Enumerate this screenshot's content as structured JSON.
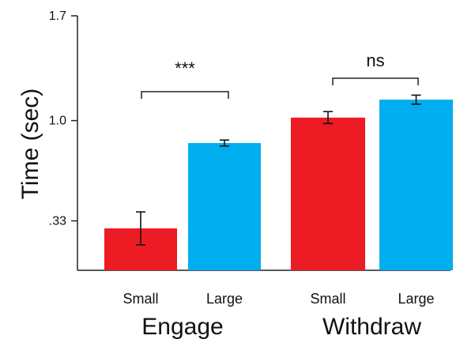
{
  "chart_data": {
    "type": "bar",
    "categories": [
      "Small",
      "Large",
      "Small",
      "Large"
    ],
    "groups": [
      {
        "label": "Engage",
        "category_indices": [
          0,
          1
        ]
      },
      {
        "label": "Withdraw",
        "category_indices": [
          2,
          3
        ]
      }
    ],
    "values": [
      0.28,
      0.85,
      1.02,
      1.14
    ],
    "errors": [
      0.11,
      0.02,
      0.04,
      0.03
    ],
    "bar_colors": [
      "#ed1c24",
      "#00aeef",
      "#ed1c24",
      "#00aeef"
    ],
    "ylabel": "Time (sec)",
    "ylim": [
      0,
      1.7
    ],
    "yticks": [
      0.33,
      1.0,
      1.7
    ],
    "ytick_labels": [
      ".33",
      "1.0",
      "1.7"
    ],
    "significance": [
      {
        "label": "***",
        "between": [
          0,
          1
        ]
      },
      {
        "label": "ns",
        "between": [
          2,
          3
        ]
      }
    ],
    "grid": false
  }
}
